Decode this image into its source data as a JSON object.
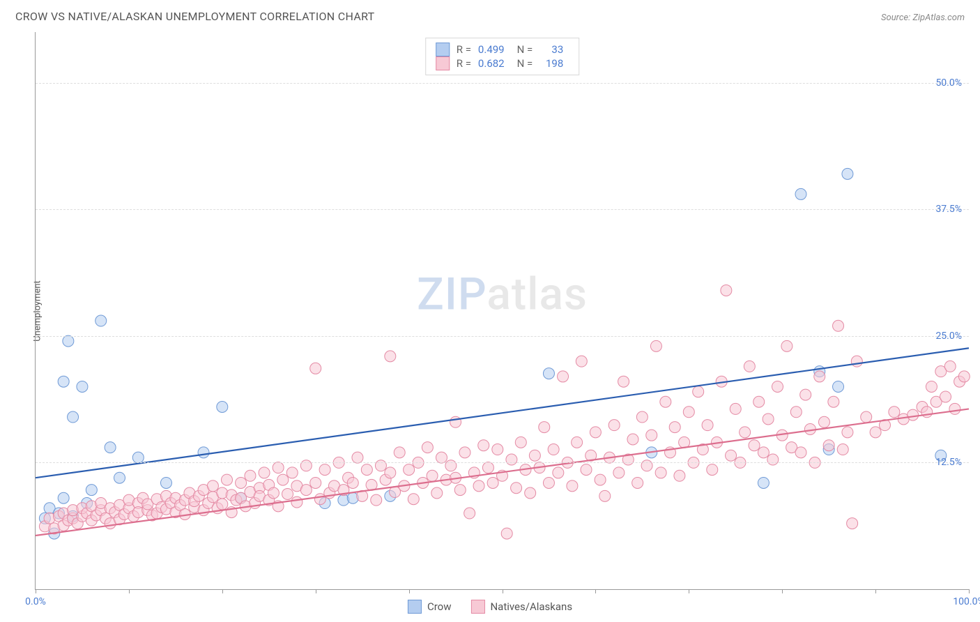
{
  "header": {
    "title": "CROW VS NATIVE/ALASKAN UNEMPLOYMENT CORRELATION CHART",
    "source_prefix": "Source: ",
    "source_name": "ZipAtlas.com"
  },
  "watermark": {
    "part1": "ZIP",
    "part2": "atlas"
  },
  "chart": {
    "type": "scatter",
    "ylabel": "Unemployment",
    "xlim": [
      0,
      100
    ],
    "ylim": [
      0,
      55
    ],
    "xtick_positions": [
      0,
      10,
      20,
      30,
      40,
      50,
      60,
      70,
      80,
      90,
      100
    ],
    "xtick_labels": {
      "0": "0.0%",
      "100": "100.0%"
    },
    "ytick_lines": [
      12.5,
      25.0,
      37.5,
      50.0
    ],
    "ytick_labels": [
      "12.5%",
      "25.0%",
      "37.5%",
      "50.0%"
    ],
    "background_color": "#ffffff",
    "grid_color": "#dddddd",
    "axis_color": "#999999",
    "label_color": "#4a7bd0",
    "marker_radius": 8,
    "marker_opacity": 0.55,
    "line_width": 2.2,
    "series": [
      {
        "key": "crow",
        "label": "Crow",
        "fill": "#b4cdf0",
        "stroke": "#6f9ad6",
        "line_color": "#2a5db0",
        "R": "0.499",
        "N": "33",
        "trend": {
          "x1": 0,
          "y1": 11.0,
          "x2": 100,
          "y2": 23.8
        },
        "points": [
          [
            1,
            7
          ],
          [
            1.5,
            8
          ],
          [
            2,
            5.5
          ],
          [
            2.5,
            7.5
          ],
          [
            3,
            9
          ],
          [
            3,
            20.5
          ],
          [
            3.5,
            24.5
          ],
          [
            4,
            7.2
          ],
          [
            4,
            17
          ],
          [
            5,
            20
          ],
          [
            5.5,
            8.5
          ],
          [
            6,
            9.8
          ],
          [
            7,
            26.5
          ],
          [
            8,
            14
          ],
          [
            9,
            11
          ],
          [
            11,
            13
          ],
          [
            14,
            10.5
          ],
          [
            18,
            13.5
          ],
          [
            20,
            18
          ],
          [
            22,
            9
          ],
          [
            31,
            8.5
          ],
          [
            33,
            8.8
          ],
          [
            34,
            9
          ],
          [
            38,
            9.2
          ],
          [
            55,
            21.3
          ],
          [
            66,
            13.5
          ],
          [
            78,
            10.5
          ],
          [
            82,
            39
          ],
          [
            84,
            21.5
          ],
          [
            85,
            13.8
          ],
          [
            86,
            20
          ],
          [
            87,
            41
          ],
          [
            97,
            13.2
          ]
        ]
      },
      {
        "key": "natives",
        "label": "Natives/Alaskans",
        "fill": "#f7c9d5",
        "stroke": "#e48aa4",
        "line_color": "#dc6e8e",
        "R": "0.682",
        "N": "198",
        "trend": {
          "x1": 0,
          "y1": 5.3,
          "x2": 100,
          "y2": 17.8
        },
        "points": [
          [
            1,
            6.2
          ],
          [
            1.5,
            7
          ],
          [
            2,
            6
          ],
          [
            2.5,
            7.2
          ],
          [
            3,
            6.3
          ],
          [
            3,
            7.5
          ],
          [
            3.5,
            6.8
          ],
          [
            4,
            7
          ],
          [
            4,
            7.8
          ],
          [
            4.5,
            6.5
          ],
          [
            5,
            7.2
          ],
          [
            5,
            8
          ],
          [
            5.5,
            7.5
          ],
          [
            6,
            6.8
          ],
          [
            6,
            8.2
          ],
          [
            6.5,
            7.3
          ],
          [
            7,
            7.8
          ],
          [
            7,
            8.5
          ],
          [
            7.5,
            7
          ],
          [
            8,
            6.5
          ],
          [
            8,
            8
          ],
          [
            8.5,
            7.6
          ],
          [
            9,
            8.3
          ],
          [
            9,
            6.9
          ],
          [
            9.5,
            7.4
          ],
          [
            10,
            8
          ],
          [
            10,
            8.8
          ],
          [
            10.5,
            7.2
          ],
          [
            11,
            8.5
          ],
          [
            11,
            7.6
          ],
          [
            11.5,
            9
          ],
          [
            12,
            7.8
          ],
          [
            12,
            8.4
          ],
          [
            12.5,
            7.3
          ],
          [
            13,
            8.9
          ],
          [
            13,
            7.5
          ],
          [
            13.5,
            8.1
          ],
          [
            14,
            9.2
          ],
          [
            14,
            7.9
          ],
          [
            14.5,
            8.5
          ],
          [
            15,
            7.6
          ],
          [
            15,
            9
          ],
          [
            15.5,
            8.3
          ],
          [
            16,
            8.8
          ],
          [
            16,
            7.4
          ],
          [
            16.5,
            9.5
          ],
          [
            17,
            8.1
          ],
          [
            17,
            8.7
          ],
          [
            17.5,
            9.2
          ],
          [
            18,
            7.8
          ],
          [
            18,
            9.8
          ],
          [
            18.5,
            8.5
          ],
          [
            19,
            9.1
          ],
          [
            19,
            10.2
          ],
          [
            19.5,
            8
          ],
          [
            20,
            9.5
          ],
          [
            20,
            8.4
          ],
          [
            20.5,
            10.8
          ],
          [
            21,
            7.6
          ],
          [
            21,
            9.3
          ],
          [
            21.5,
            8.8
          ],
          [
            22,
            10.5
          ],
          [
            22,
            9
          ],
          [
            22.5,
            8.2
          ],
          [
            23,
            11.2
          ],
          [
            23,
            9.6
          ],
          [
            23.5,
            8.5
          ],
          [
            24,
            10
          ],
          [
            24,
            9.2
          ],
          [
            24.5,
            11.5
          ],
          [
            25,
            8.8
          ],
          [
            25,
            10.3
          ],
          [
            25.5,
            9.5
          ],
          [
            26,
            12
          ],
          [
            26,
            8.2
          ],
          [
            26.5,
            10.8
          ],
          [
            27,
            9.4
          ],
          [
            27.5,
            11.5
          ],
          [
            28,
            8.6
          ],
          [
            28,
            10.2
          ],
          [
            29,
            9.8
          ],
          [
            29,
            12.2
          ],
          [
            30,
            21.8
          ],
          [
            30,
            10.5
          ],
          [
            30.5,
            8.9
          ],
          [
            31,
            11.8
          ],
          [
            31.5,
            9.5
          ],
          [
            32,
            10.2
          ],
          [
            32.5,
            12.5
          ],
          [
            33,
            9.8
          ],
          [
            33.5,
            11
          ],
          [
            34,
            10.5
          ],
          [
            34.5,
            13
          ],
          [
            35,
            9.2
          ],
          [
            35.5,
            11.8
          ],
          [
            36,
            10.3
          ],
          [
            36.5,
            8.8
          ],
          [
            37,
            12.2
          ],
          [
            37.5,
            10.8
          ],
          [
            38,
            23
          ],
          [
            38,
            11.5
          ],
          [
            38.5,
            9.6
          ],
          [
            39,
            13.5
          ],
          [
            39.5,
            10.2
          ],
          [
            40,
            11.8
          ],
          [
            40.5,
            8.9
          ],
          [
            41,
            12.5
          ],
          [
            41.5,
            10.5
          ],
          [
            42,
            14
          ],
          [
            42.5,
            11.2
          ],
          [
            43,
            9.5
          ],
          [
            43.5,
            13
          ],
          [
            44,
            10.8
          ],
          [
            44.5,
            12.2
          ],
          [
            45,
            16.5
          ],
          [
            45,
            11
          ],
          [
            45.5,
            9.8
          ],
          [
            46,
            13.5
          ],
          [
            46.5,
            7.5
          ],
          [
            47,
            11.5
          ],
          [
            47.5,
            10.2
          ],
          [
            48,
            14.2
          ],
          [
            48.5,
            12
          ],
          [
            49,
            10.5
          ],
          [
            49.5,
            13.8
          ],
          [
            50,
            11.2
          ],
          [
            50.5,
            5.5
          ],
          [
            51,
            12.8
          ],
          [
            51.5,
            10
          ],
          [
            52,
            14.5
          ],
          [
            52.5,
            11.8
          ],
          [
            53,
            9.5
          ],
          [
            53.5,
            13.2
          ],
          [
            54,
            12
          ],
          [
            54.5,
            16
          ],
          [
            55,
            10.5
          ],
          [
            55.5,
            13.8
          ],
          [
            56,
            11.5
          ],
          [
            56.5,
            21
          ],
          [
            57,
            12.5
          ],
          [
            57.5,
            10.2
          ],
          [
            58,
            14.5
          ],
          [
            58.5,
            22.5
          ],
          [
            59,
            11.8
          ],
          [
            59.5,
            13.2
          ],
          [
            60,
            15.5
          ],
          [
            60.5,
            10.8
          ],
          [
            61,
            9.2
          ],
          [
            61.5,
            13
          ],
          [
            62,
            16.2
          ],
          [
            62.5,
            11.5
          ],
          [
            63,
            20.5
          ],
          [
            63.5,
            12.8
          ],
          [
            64,
            14.8
          ],
          [
            64.5,
            10.5
          ],
          [
            65,
            17
          ],
          [
            65.5,
            12.2
          ],
          [
            66,
            15.2
          ],
          [
            66.5,
            24
          ],
          [
            67,
            11.5
          ],
          [
            67.5,
            18.5
          ],
          [
            68,
            13.5
          ],
          [
            68.5,
            16
          ],
          [
            69,
            11.2
          ],
          [
            69.5,
            14.5
          ],
          [
            70,
            17.5
          ],
          [
            70.5,
            12.5
          ],
          [
            71,
            19.5
          ],
          [
            71.5,
            13.8
          ],
          [
            72,
            16.2
          ],
          [
            72.5,
            11.8
          ],
          [
            73,
            14.5
          ],
          [
            73.5,
            20.5
          ],
          [
            74,
            29.5
          ],
          [
            74.5,
            13.2
          ],
          [
            75,
            17.8
          ],
          [
            75.5,
            12.5
          ],
          [
            76,
            15.5
          ],
          [
            76.5,
            22
          ],
          [
            77,
            14.2
          ],
          [
            77.5,
            18.5
          ],
          [
            78,
            13.5
          ],
          [
            78.5,
            16.8
          ],
          [
            79,
            12.8
          ],
          [
            79.5,
            20
          ],
          [
            80,
            15.2
          ],
          [
            80.5,
            24
          ],
          [
            81,
            14
          ],
          [
            81.5,
            17.5
          ],
          [
            82,
            13.5
          ],
          [
            82.5,
            19.2
          ],
          [
            83,
            15.8
          ],
          [
            83.5,
            12.5
          ],
          [
            84,
            21
          ],
          [
            84.5,
            16.5
          ],
          [
            85,
            14.2
          ],
          [
            85.5,
            18.5
          ],
          [
            86,
            26
          ],
          [
            86.5,
            13.8
          ],
          [
            87,
            15.5
          ],
          [
            87.5,
            6.5
          ],
          [
            88,
            22.5
          ],
          [
            89,
            17
          ],
          [
            90,
            15.5
          ],
          [
            91,
            16.2
          ],
          [
            92,
            17.5
          ],
          [
            93,
            16.8
          ],
          [
            94,
            17.2
          ],
          [
            95,
            18
          ],
          [
            95.5,
            17.5
          ],
          [
            96,
            20
          ],
          [
            96.5,
            18.5
          ],
          [
            97,
            21.5
          ],
          [
            97.5,
            19
          ],
          [
            98,
            22
          ],
          [
            98.5,
            17.8
          ],
          [
            99,
            20.5
          ],
          [
            99.5,
            21
          ]
        ]
      }
    ]
  },
  "legend": {
    "series1": "Crow",
    "series2": "Natives/Alaskans"
  },
  "stats_labels": {
    "R": "R =",
    "N": "N ="
  }
}
